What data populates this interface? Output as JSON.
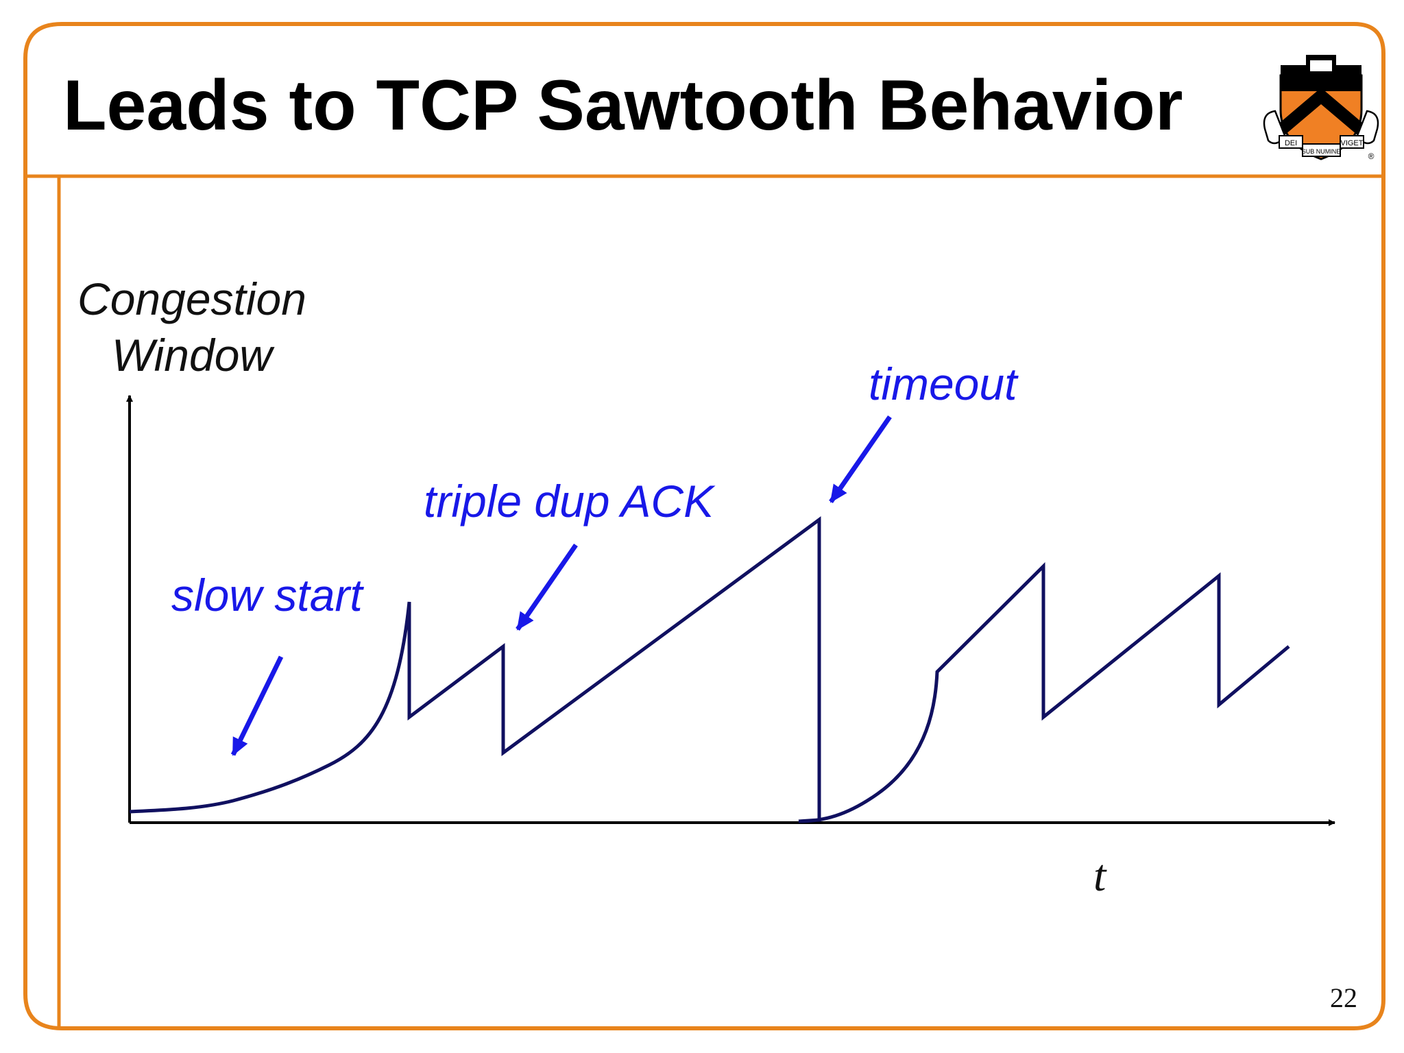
{
  "slide": {
    "title": "Leads to TCP Sawtooth Behavior",
    "page_number": "22",
    "crest": {
      "icon": "princeton-shield-icon",
      "motto_left": "DEI",
      "motto_center": "SUB NUMINE",
      "motto_right": "VIGET",
      "registered_mark": "®"
    },
    "colors": {
      "frame": "#e8841c",
      "curve": "#101060",
      "annotation": "#1818e8",
      "shield": "#f08024"
    }
  },
  "diagram": {
    "y_axis_label_line1": "Congestion",
    "y_axis_label_line2": "Window",
    "x_axis_label": "t",
    "annotations": {
      "slow_start": "slow start",
      "triple_dup_ack": "triple dup ACK",
      "timeout": "timeout"
    }
  }
}
